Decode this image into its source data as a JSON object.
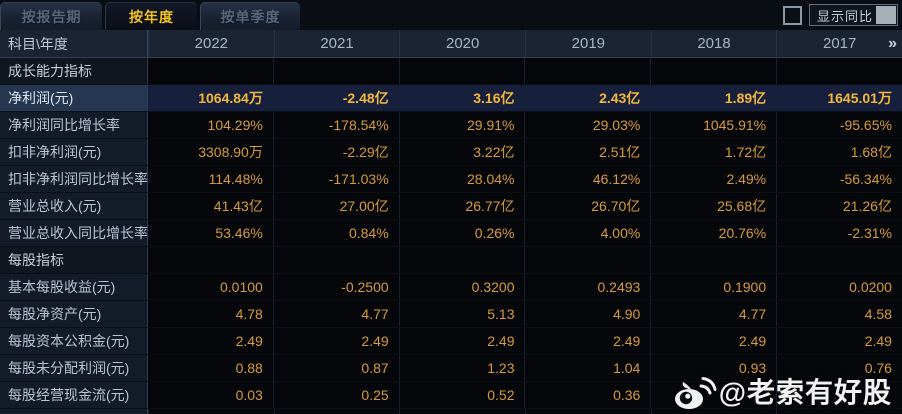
{
  "tabs": [
    {
      "label": "按报告期",
      "active": false
    },
    {
      "label": "按年度",
      "active": true
    },
    {
      "label": "按单季度",
      "active": false
    }
  ],
  "controls": {
    "show_yoy_label": "显示同比",
    "checkbox_checked": false
  },
  "table": {
    "corner_header": "科目\\年度",
    "years": [
      "2022",
      "2021",
      "2020",
      "2019",
      "2018",
      "2017"
    ],
    "more_icon": "»",
    "rows": [
      {
        "type": "section",
        "label": "成长能力指标"
      },
      {
        "type": "data",
        "highlight": true,
        "label": "净利润(元)",
        "values": [
          "1064.84万",
          "-2.48亿",
          "3.16亿",
          "2.43亿",
          "1.89亿",
          "1645.01万"
        ]
      },
      {
        "type": "data",
        "highlight": false,
        "label": "净利润同比增长率",
        "values": [
          "104.29%",
          "-178.54%",
          "29.91%",
          "29.03%",
          "1045.91%",
          "-95.65%"
        ]
      },
      {
        "type": "data",
        "highlight": false,
        "label": "扣非净利润(元)",
        "values": [
          "3308.90万",
          "-2.29亿",
          "3.22亿",
          "2.51亿",
          "1.72亿",
          "1.68亿"
        ]
      },
      {
        "type": "data",
        "highlight": false,
        "label": "扣非净利润同比增长率",
        "values": [
          "114.48%",
          "-171.03%",
          "28.04%",
          "46.12%",
          "2.49%",
          "-56.34%"
        ]
      },
      {
        "type": "data",
        "highlight": false,
        "label": "营业总收入(元)",
        "values": [
          "41.43亿",
          "27.00亿",
          "26.77亿",
          "26.70亿",
          "25.68亿",
          "21.26亿"
        ]
      },
      {
        "type": "data",
        "highlight": false,
        "label": "营业总收入同比增长率",
        "values": [
          "53.46%",
          "0.84%",
          "0.26%",
          "4.00%",
          "20.76%",
          "-2.31%"
        ]
      },
      {
        "type": "section",
        "label": "每股指标"
      },
      {
        "type": "data",
        "highlight": false,
        "label": "基本每股收益(元)",
        "values": [
          "0.0100",
          "-0.2500",
          "0.3200",
          "0.2493",
          "0.1900",
          "0.0200"
        ]
      },
      {
        "type": "data",
        "highlight": false,
        "label": "每股净资产(元)",
        "values": [
          "4.78",
          "4.77",
          "5.13",
          "4.90",
          "4.77",
          "4.58"
        ]
      },
      {
        "type": "data",
        "highlight": false,
        "label": "每股资本公积金(元)",
        "values": [
          "2.49",
          "2.49",
          "2.49",
          "2.49",
          "2.49",
          "2.49"
        ]
      },
      {
        "type": "data",
        "highlight": false,
        "label": "每股未分配利润(元)",
        "values": [
          "0.88",
          "0.87",
          "1.23",
          "1.04",
          "0.93",
          "0.76"
        ]
      },
      {
        "type": "data",
        "highlight": false,
        "label": "每股经营现金流(元)",
        "values": [
          "0.03",
          "0.25",
          "0.52",
          "0.36",
          "",
          ""
        ]
      }
    ]
  },
  "watermark": {
    "text": "@老索有好股"
  },
  "colors": {
    "accent_gold": "#f3c41e",
    "value_gold": "#d89b3c",
    "highlight_value_gold": "#f4b73e",
    "highlight_row_bg": "#161f3c",
    "header_bg": "#1a2433",
    "label_cell_bg": "#131b28"
  }
}
